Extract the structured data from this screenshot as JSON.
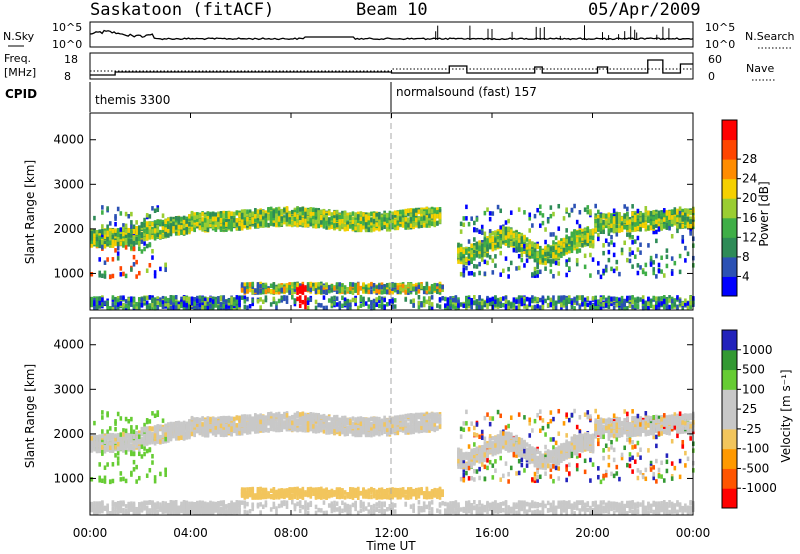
{
  "header": {
    "station": "Saskatoon (fitACF)",
    "beam": "Beam 10",
    "date": "05/Apr/2009"
  },
  "panels": {
    "noise": {
      "left_label": "N.Sky",
      "left_ticks": [
        "10^5",
        "10^0"
      ],
      "right_ticks": [
        "10^5",
        "10^0"
      ],
      "right_label": "N.Search"
    },
    "freq": {
      "left_label_1": "Freq.",
      "left_label_2": "[MHz]",
      "left_ticks": [
        "18",
        "8"
      ],
      "right_ticks": [
        "60",
        "0"
      ],
      "right_label": "Nave"
    },
    "cpid": {
      "label": "CPID",
      "modes": [
        {
          "name": "themis 3300",
          "start_hour": 0
        },
        {
          "name": "normalsound (fast) 157",
          "start_hour": 12
        }
      ]
    }
  },
  "colors": {
    "power": [
      "#0000ff",
      "#2b51b4",
      "#2e8b57",
      "#3fae47",
      "#9acd32",
      "#f5d000",
      "#ff8c00",
      "#ff4500",
      "#ff0000"
    ],
    "velocity": [
      "#ff0000",
      "#ff5500",
      "#ff9900",
      "#f2c55c",
      "#c8c8c8",
      "#c8c8c8",
      "#66cc33",
      "#339933",
      "#2222bb"
    ]
  },
  "chart_data": [
    {
      "type": "heatmap",
      "name": "power",
      "ylabel": "Slant Range [km]",
      "ylim": [
        180,
        4600
      ],
      "y_ticks": [
        1000,
        2000,
        3000,
        4000
      ],
      "xlim_hours": [
        0,
        24
      ],
      "colorbar_label": "Power [dB]",
      "colorbar_range": [
        0,
        32
      ],
      "colorbar_ticks": [
        4,
        8,
        12,
        16,
        20,
        24,
        28
      ]
    },
    {
      "type": "heatmap",
      "name": "velocity",
      "ylabel": "Slant Range [km]",
      "ylim": [
        180,
        4600
      ],
      "y_ticks": [
        1000,
        2000,
        3000,
        4000
      ],
      "xlim_hours": [
        0,
        24
      ],
      "colorbar_label": "Velocity [m s⁻¹]",
      "colorbar_ticks": [
        "1000",
        "500",
        "100",
        "25",
        "-25",
        "-100",
        "-500",
        "-1000"
      ]
    }
  ],
  "x_axis": {
    "label": "Time UT",
    "ticks": [
      "00:00",
      "04:00",
      "08:00",
      "12:00",
      "16:00",
      "20:00",
      "00:00"
    ]
  }
}
